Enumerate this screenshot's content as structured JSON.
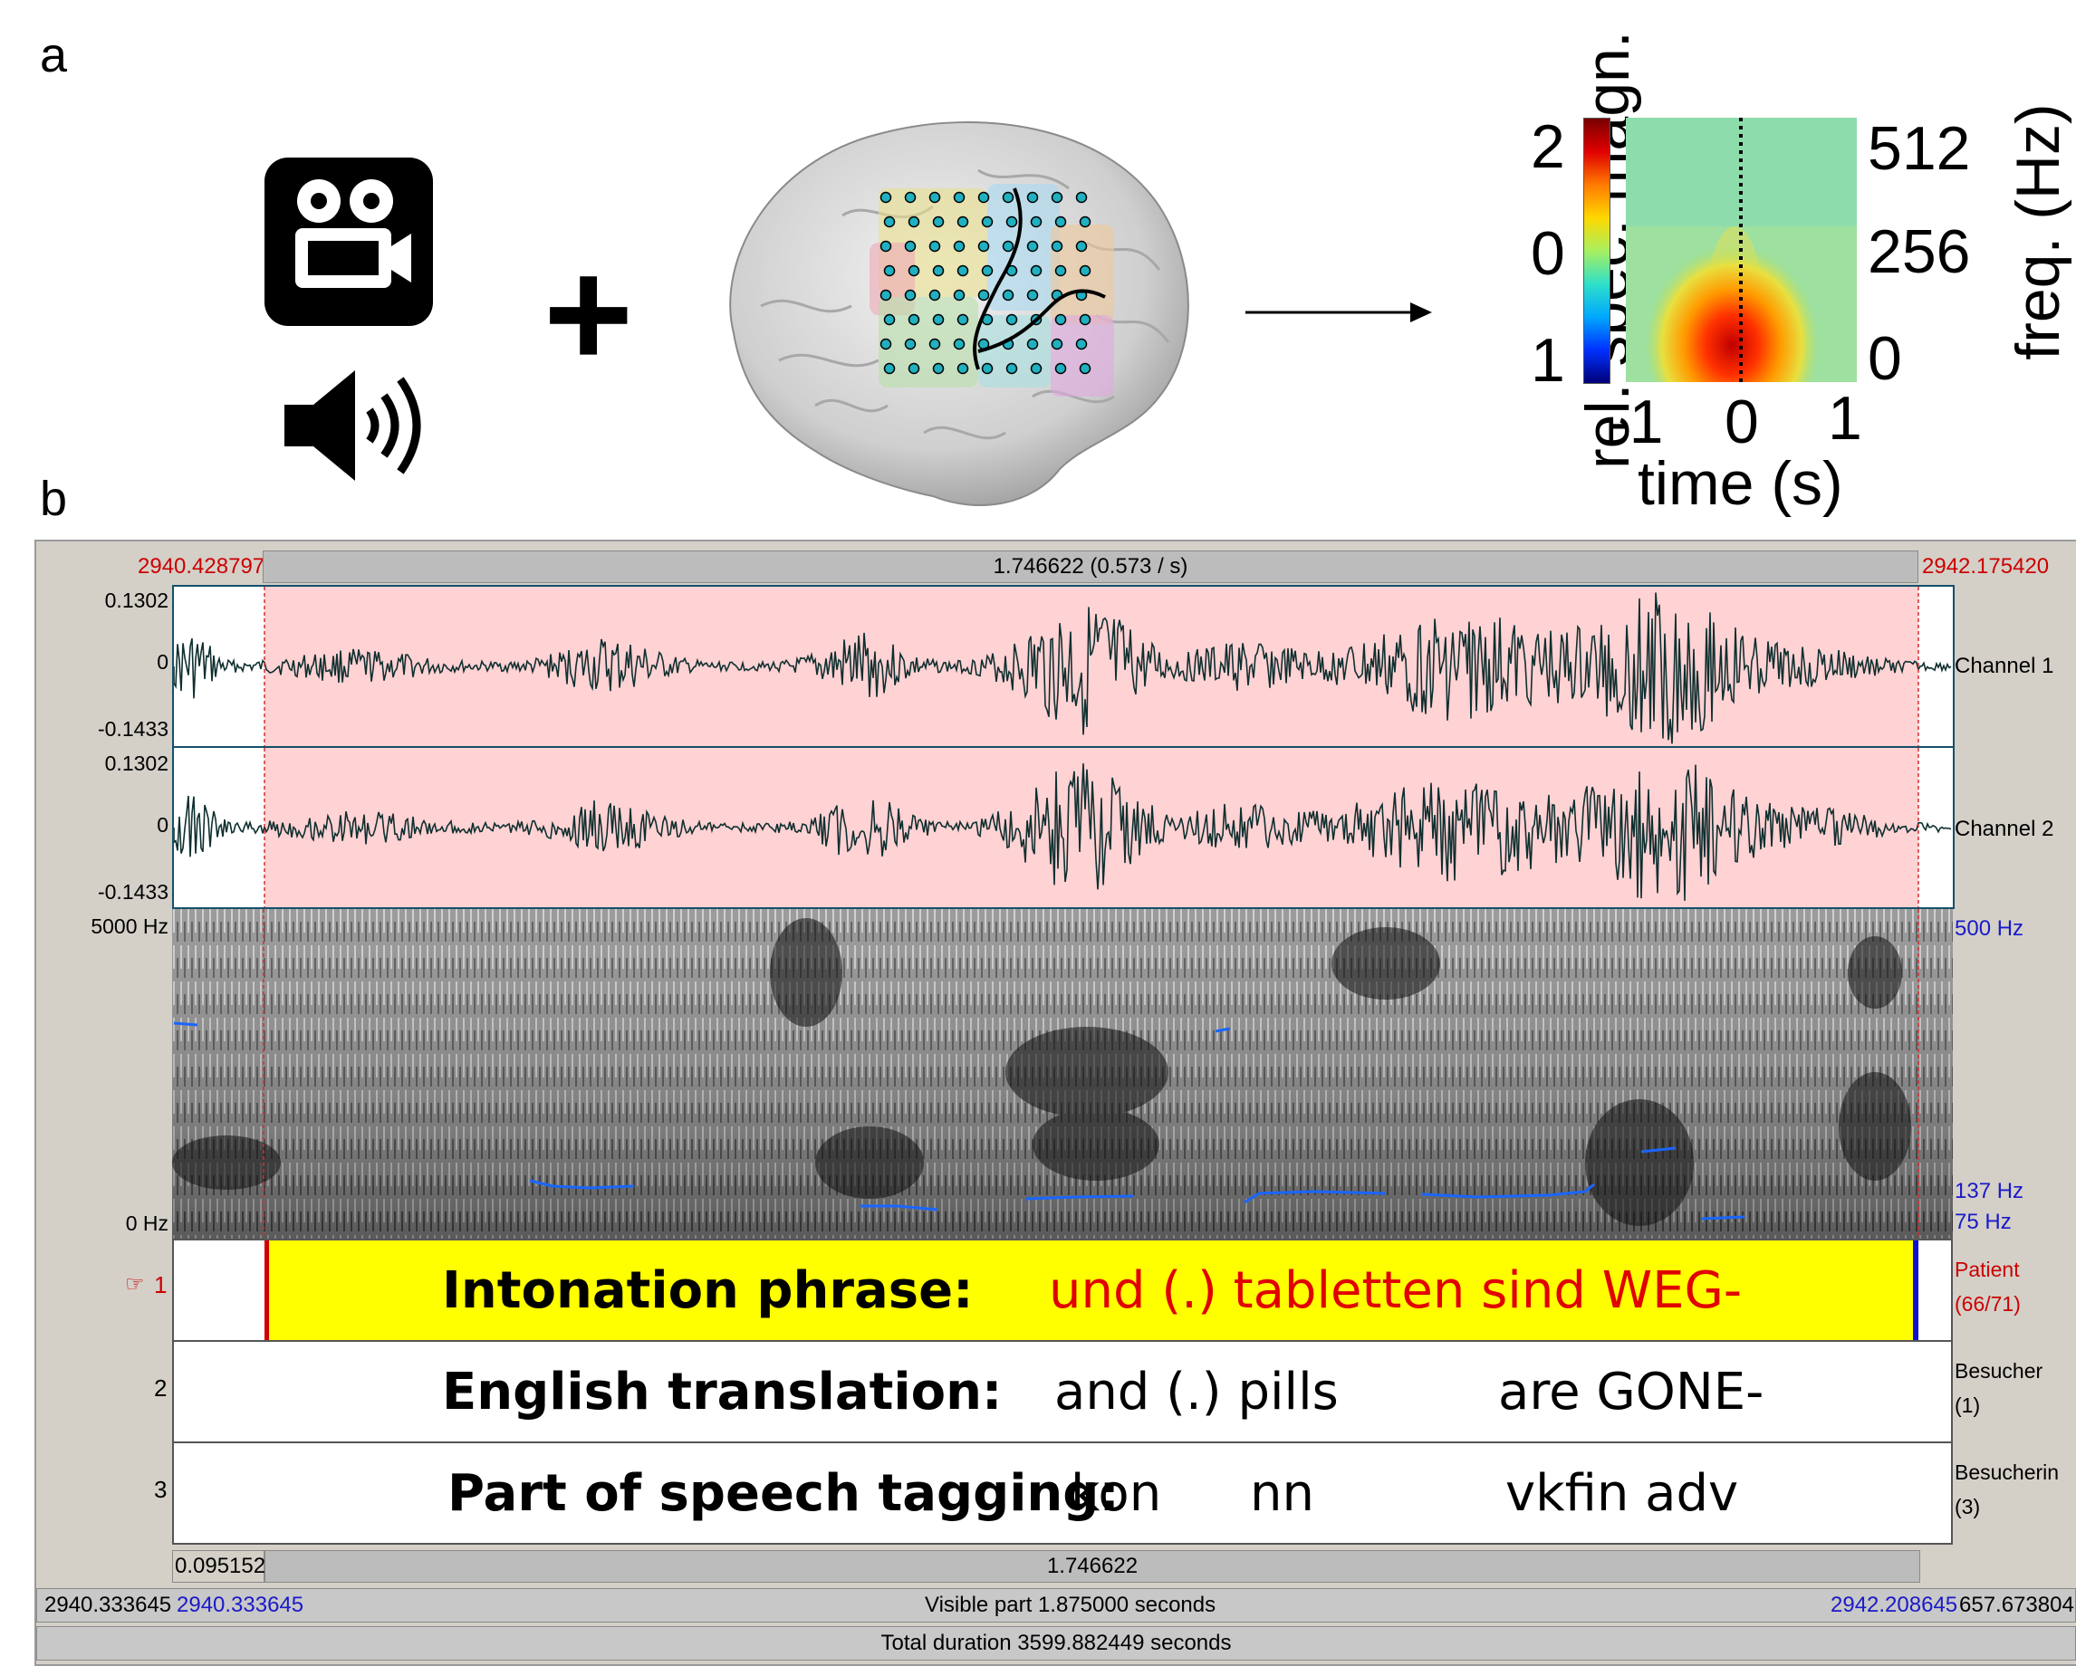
{
  "panel_a": {
    "label": "a",
    "colorbar": {
      "axis_label": "rel. spec. magn.",
      "ticks": [
        "2",
        "0",
        "1"
      ]
    },
    "freq_axis": {
      "label": "freq. (Hz)",
      "ticks": [
        "512",
        "256",
        "0"
      ]
    },
    "time_axis": {
      "label": "time (s)",
      "ticks": [
        "-1",
        "0",
        "1"
      ]
    },
    "icons": [
      "video-camera-icon",
      "speaker-icon",
      "plus-icon",
      "brain-electrode-grid",
      "right-arrow-icon"
    ]
  },
  "panel_b": {
    "label": "b",
    "selection": {
      "start": "2940.428797",
      "duration": "1.746622 (0.573 / s)",
      "end": "2942.175420"
    },
    "channel1": {
      "max": "0.1302",
      "zero": "0",
      "min": "-0.1433",
      "name": "Channel 1"
    },
    "channel2": {
      "max": "0.1302",
      "zero": "0",
      "min": "-0.1433",
      "name": "Channel 2"
    },
    "spectrogram": {
      "top": "5000 Hz",
      "bottom": "0 Hz",
      "pitch_top": "500 Hz",
      "pitch_mid": "137 Hz",
      "pitch_low": "75 Hz"
    },
    "tiers": [
      {
        "number": "1",
        "marker": "☞",
        "heading": "Intonation phrase:",
        "text": "und (.) tabletten sind WEG-",
        "speaker": "Patient",
        "count": "(66/71)"
      },
      {
        "number": "2",
        "heading": "English translation:",
        "w1": "and (.) pills",
        "w2": "are GONE-",
        "speaker": "Besucher",
        "count": "(1)"
      },
      {
        "number": "3",
        "heading": "Part of speech tagging:",
        "w1": "kon",
        "w2": "nn",
        "w3": "vkfin adv",
        "speaker": "Besucherin",
        "count": "(3)"
      }
    ],
    "bottom": {
      "sel_left": "0.095152",
      "sel_mid": "1.746622",
      "view_left_outer": "2940.333645",
      "view_left": "2940.333645",
      "visible": "Visible part 1.875000 seconds",
      "view_right": "2942.208645",
      "view_right_outer": "657.673804",
      "total": "Total duration 3599.882449 seconds"
    }
  }
}
